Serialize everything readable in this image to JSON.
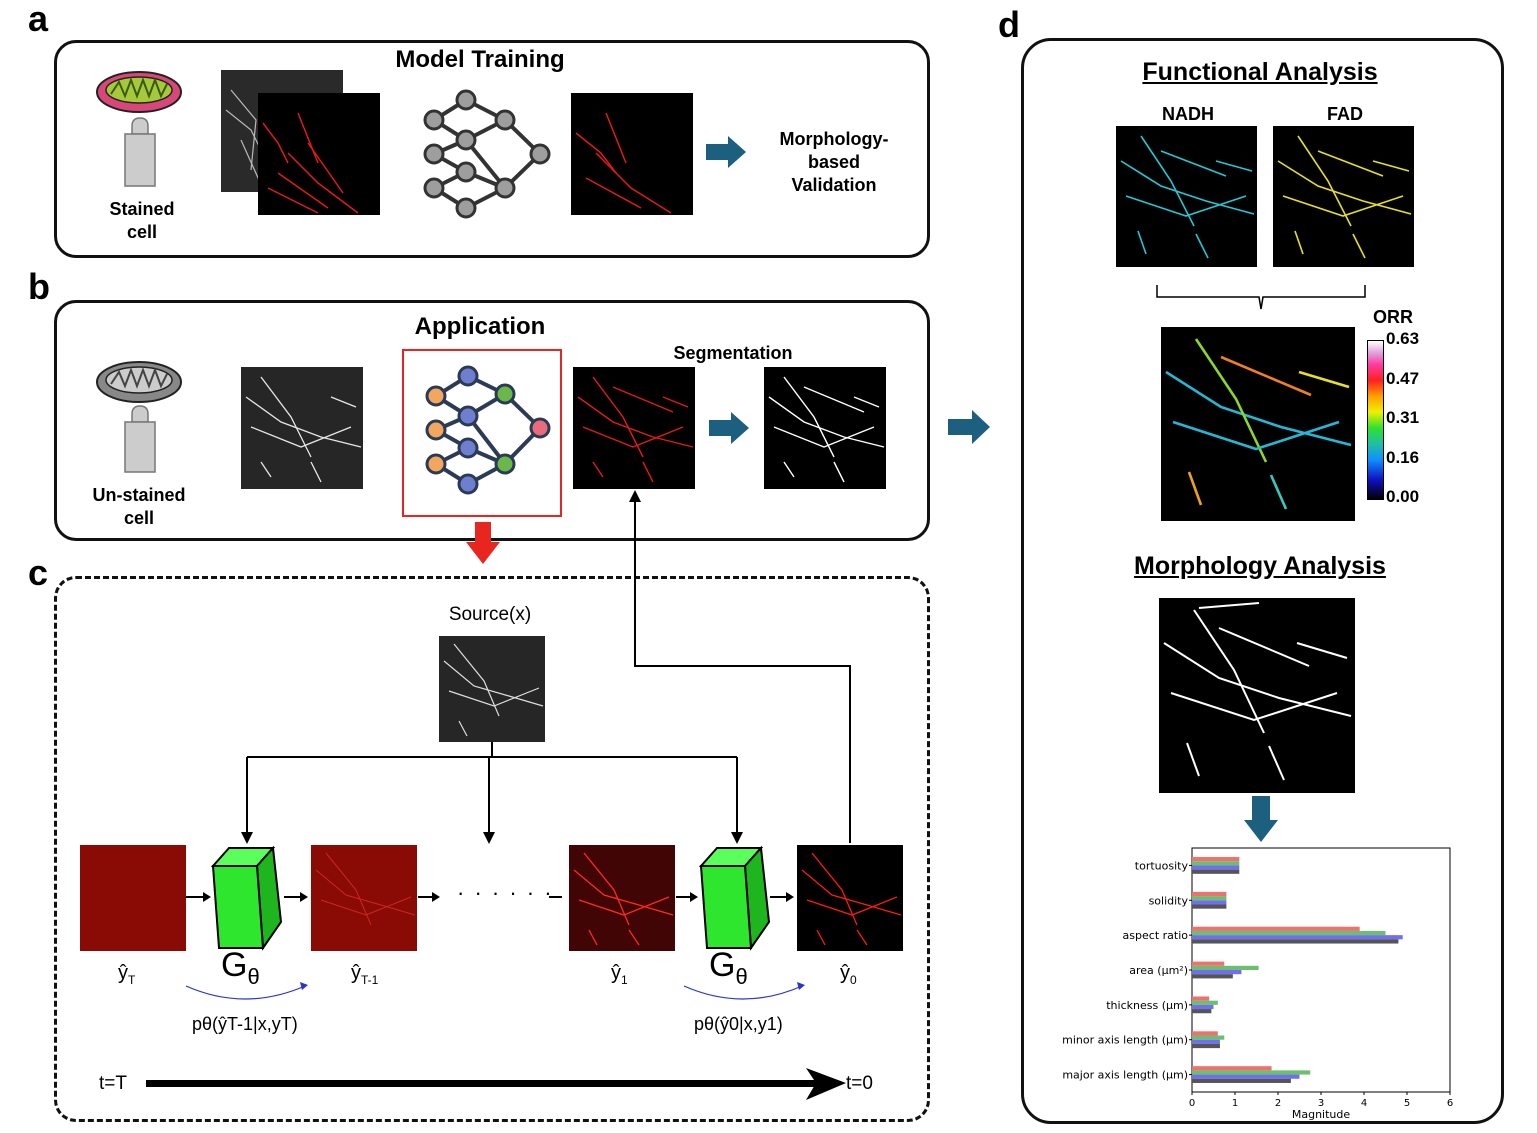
{
  "panels": {
    "a": "a",
    "b": "b",
    "c": "c",
    "d": "d"
  },
  "panel_a": {
    "title": "Model Training",
    "cell_label_line1": "Stained",
    "cell_label_line2": "cell",
    "validation_line1": "Morphology-",
    "validation_line2": "based",
    "validation_line3": "Validation"
  },
  "panel_b": {
    "title": "Application",
    "cell_label_line1": "Un-stained",
    "cell_label_line2": "cell",
    "segmentation_label": "Segmentation"
  },
  "panel_c": {
    "source_label": "Source(x)",
    "y_T": "ŷ",
    "y_T_sub": "T",
    "y_T1": "ŷ",
    "y_T1_sub": "T-1",
    "y_1": "ŷ",
    "y_1_sub": "1",
    "y_0": "ŷ",
    "y_0_sub": "0",
    "g_label": "G",
    "g_sub": "θ",
    "dots": "· · · · · ·",
    "p_left": "pθ(ŷT-1|x,yT)",
    "p_right": "pθ(ŷ0|x,y1)",
    "t_start": "t=T",
    "t_end": "t=0"
  },
  "panel_d": {
    "functional_title": "Functional Analysis",
    "nadh": "NADH",
    "fad": "FAD",
    "orr_label": "ORR",
    "colorbar_ticks": [
      "0.63",
      "0.47",
      "0.31",
      "0.16",
      "0.00"
    ],
    "morphology_title": "Morphology Analysis"
  },
  "colors": {
    "arrow_teal": "#1d5f7e",
    "red_accent": "#e8261f",
    "node_grey": "#9e9e9e",
    "node_blue": "#6f7fd0",
    "node_orange": "#f2a65e",
    "node_green": "#6bb84a",
    "node_pink": "#ea6b7a",
    "cube_green": "#2ee62e"
  },
  "chart_data": {
    "type": "bar",
    "orientation": "horizontal",
    "categories": [
      "tortuosity",
      "solidity",
      "aspect ratio",
      "area (µm²)",
      "thickness (µm)",
      "minor axis length (µm)",
      "major axis length (µm)"
    ],
    "series": [
      {
        "color": "#f07070",
        "values": [
          1.1,
          0.8,
          3.9,
          0.75,
          0.4,
          0.6,
          1.85
        ]
      },
      {
        "color": "#6cbf6c",
        "values": [
          1.1,
          0.8,
          4.5,
          1.55,
          0.6,
          0.75,
          2.75
        ]
      },
      {
        "color": "#6f6ff0",
        "values": [
          1.1,
          0.8,
          4.9,
          1.15,
          0.5,
          0.65,
          2.5
        ]
      },
      {
        "color": "#555555",
        "values": [
          1.1,
          0.8,
          4.8,
          0.95,
          0.45,
          0.65,
          2.3
        ]
      }
    ],
    "xlabel": "Magnitude",
    "xlim": [
      0,
      6
    ],
    "xticks": [
      "0",
      "1",
      "2",
      "3",
      "4",
      "5",
      "6"
    ]
  }
}
